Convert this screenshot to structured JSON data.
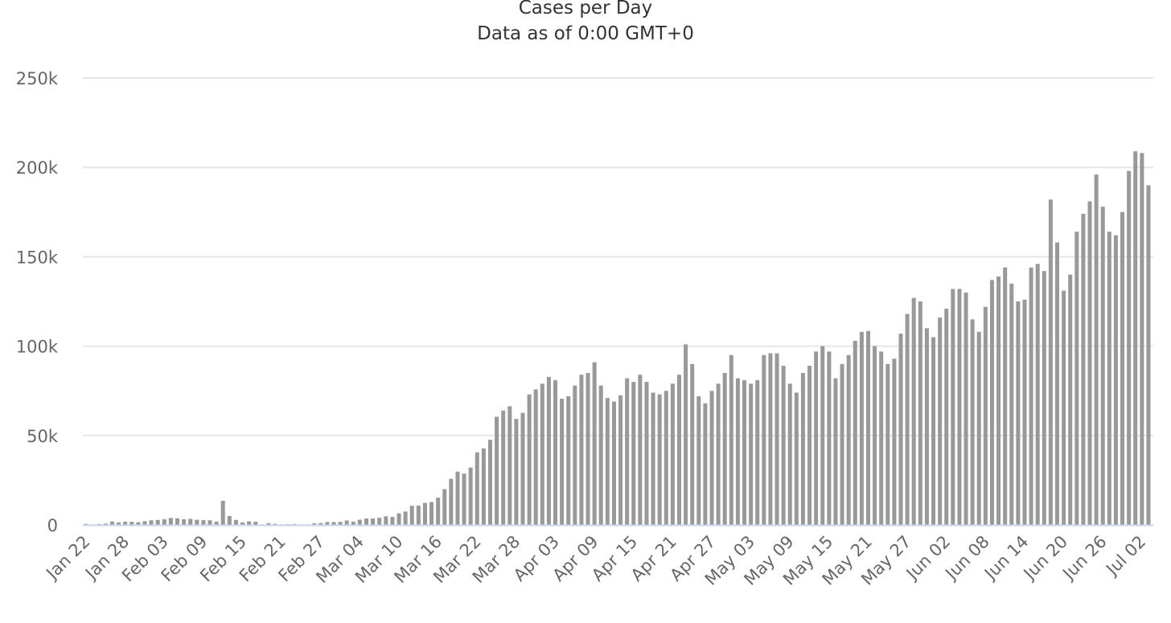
{
  "chart_data": {
    "type": "bar",
    "title": "Cases per Day",
    "subtitle": "Data as of 0:00 GMT+0",
    "xlabel": "",
    "ylabel": "",
    "ylim": [
      0,
      250000
    ],
    "yticks": [
      0,
      50000,
      100000,
      150000,
      200000,
      250000
    ],
    "ytick_labels": [
      "0",
      "50k",
      "100k",
      "150k",
      "200k",
      "250k"
    ],
    "grid": true,
    "legend": "none",
    "bar_color": "#999999",
    "x_tick_labels": [
      "Jan 22",
      "Jan 28",
      "Feb 03",
      "Feb 09",
      "Feb 15",
      "Feb 21",
      "Feb 27",
      "Mar 04",
      "Mar 10",
      "Mar 16",
      "Mar 22",
      "Mar 28",
      "Apr 03",
      "Apr 09",
      "Apr 15",
      "Apr 21",
      "Apr 27",
      "May 03",
      "May 09",
      "May 15",
      "May 21",
      "May 27",
      "Jun 02",
      "Jun 08",
      "Jun 14",
      "Jun 20",
      "Jun 26",
      "Jul 02"
    ],
    "start_date": "Jan 22",
    "values": [
      600,
      300,
      500,
      700,
      1900,
      1400,
      1800,
      1700,
      1500,
      2100,
      2600,
      2800,
      3200,
      3900,
      3700,
      3200,
      3400,
      2900,
      2700,
      2600,
      1800,
      13500,
      5000,
      2800,
      1400,
      2000,
      1800,
      300,
      1000,
      600,
      300,
      400,
      500,
      300,
      300,
      900,
      1000,
      1600,
      1600,
      1700,
      2500,
      1800,
      2900,
      3600,
      3600,
      4000,
      4800,
      4500,
      6500,
      7500,
      10700,
      10800,
      12300,
      12800,
      15200,
      20000,
      25800,
      29800,
      28700,
      32100,
      40600,
      42800,
      47600,
      60500,
      64000,
      66400,
      59300,
      62700,
      73000,
      75800,
      79000,
      82800,
      81000,
      70600,
      72000,
      78000,
      84000,
      85000,
      91000,
      78000,
      71000,
      69000,
      72500,
      82000,
      80000,
      84000,
      80000,
      74000,
      73000,
      75000,
      79000,
      84000,
      101000,
      90000,
      72000,
      68000,
      75000,
      79000,
      85000,
      95000,
      82000,
      81000,
      79000,
      81000,
      95000,
      96000,
      96000,
      89000,
      79000,
      74000,
      85000,
      89000,
      97000,
      100000,
      97000,
      82000,
      90000,
      95000,
      103000,
      108000,
      108500,
      100000,
      97000,
      90000,
      93000,
      107000,
      118000,
      127000,
      125000,
      110000,
      105000,
      116000,
      121000,
      132000,
      132000,
      130000,
      115000,
      108000,
      122000,
      137000,
      139000,
      144000,
      135000,
      125000,
      126000,
      144000,
      146000,
      142000,
      182000,
      158000,
      131000,
      140000,
      164000,
      174000,
      181000,
      196000,
      178000,
      164000,
      162000,
      175000,
      198000,
      209000,
      208000,
      190000
    ]
  }
}
